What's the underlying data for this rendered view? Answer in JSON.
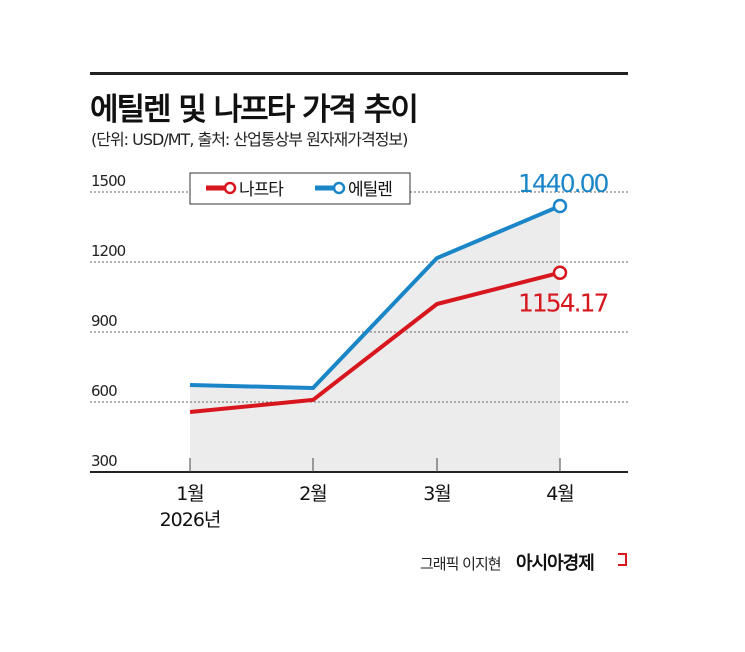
{
  "header": {
    "title": "에틸렌 및 나프타 가격 추이",
    "subtitle": "(단위: USD/MT, 출처: 산업통상부 원자재가격정보)"
  },
  "footer": {
    "credit": "그래픽 이지현",
    "brand": "아시아경제"
  },
  "chart_data": {
    "type": "line",
    "categories": [
      "1월\n2026년",
      "2월",
      "3월",
      "4월"
    ],
    "category_labels": [
      [
        "1월",
        "2026년"
      ],
      [
        "2월"
      ],
      [
        "3월"
      ],
      [
        "4월"
      ]
    ],
    "yticks": [
      300,
      600,
      900,
      1200,
      1500
    ],
    "ylim": [
      300,
      1500
    ],
    "grid": true,
    "legend": "top-left",
    "series": [
      {
        "name": "나프타",
        "color": "#d7161e",
        "values": [
          557,
          609,
          1020,
          1154.17
        ],
        "end_label": "1154.17"
      },
      {
        "name": "에틸렌",
        "color": "#1a86c8",
        "values": [
          673,
          660,
          1217,
          1440.0
        ],
        "end_label": "1440.00"
      }
    ]
  }
}
